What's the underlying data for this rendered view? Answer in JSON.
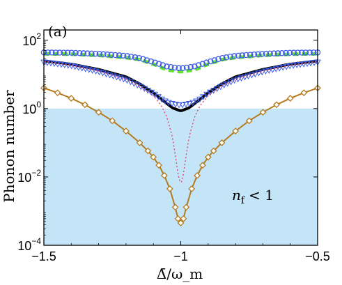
{
  "chart_data": {
    "type": "line",
    "panel_label": "(a)",
    "xlabel": "Δ̄/ω_m",
    "ylabel": "Phonon number",
    "x_scale": "linear",
    "y_scale": "log",
    "xlim": [
      -1.5,
      -0.5
    ],
    "ylim": [
      0.0001,
      200
    ],
    "x_ticks": [
      -1.5,
      -1,
      -0.5
    ],
    "x_tick_labels": [
      "−1.5",
      "−1",
      "−0.5"
    ],
    "y_ticks": [
      {
        "base": "10",
        "exp": "2",
        "value": 100
      },
      {
        "base": "10",
        "exp": "0",
        "value": 1
      },
      {
        "base": "10",
        "exp": "−2",
        "value": 0.01
      },
      {
        "base": "10",
        "exp": "−4",
        "value": 0.0001
      }
    ],
    "shaded_region": {
      "y_from": 0.0001,
      "y_to": 1,
      "color": "#c3e5f7"
    },
    "annotation": {
      "lhs": "n",
      "sub": "f",
      "rhs": "< 1"
    },
    "series": [
      {
        "marker": "dashed-line",
        "color": "#5ee22a",
        "x": [
          -1.5,
          -1.4,
          -1.3,
          -1.2,
          -1.15,
          -1.1,
          -1.05,
          -1.0,
          -0.95,
          -0.9,
          -0.85,
          -0.8,
          -0.7,
          -0.6,
          -0.5
        ],
        "y": [
          40,
          39,
          36,
          31,
          27,
          20,
          13.5,
          12,
          13.5,
          20,
          27,
          31,
          36,
          39,
          40
        ]
      },
      {
        "marker": "circle",
        "color": "#3d5ce6",
        "x": [
          -1.5,
          -1.4,
          -1.3,
          -1.2,
          -1.15,
          -1.1,
          -1.05,
          -1.0,
          -0.95,
          -0.9,
          -0.85,
          -0.8,
          -0.7,
          -0.6,
          -0.5
        ],
        "y": [
          44,
          43,
          40,
          35,
          30,
          23,
          17,
          15,
          17,
          23,
          30,
          35,
          40,
          43,
          44
        ]
      },
      {
        "marker": "solid-line",
        "color": "#000000",
        "x": [
          -1.5,
          -1.4,
          -1.3,
          -1.2,
          -1.15,
          -1.1,
          -1.06,
          -1.03,
          -1.0,
          -0.97,
          -0.94,
          -0.9,
          -0.85,
          -0.8,
          -0.7,
          -0.6,
          -0.5
        ],
        "y": [
          25,
          20,
          14,
          8.5,
          5.3,
          2.9,
          1.6,
          1.05,
          0.85,
          1.05,
          1.6,
          2.9,
          5.3,
          8.5,
          14,
          20,
          25
        ]
      },
      {
        "marker": "triangle",
        "color": "#3d5ce6",
        "x": [
          -1.5,
          -1.4,
          -1.3,
          -1.2,
          -1.15,
          -1.1,
          -1.07,
          -1.05,
          -1.03,
          -1.01,
          -1.0,
          -0.99,
          -0.97,
          -0.95,
          -0.93,
          -0.9,
          -0.85,
          -0.8,
          -0.7,
          -0.6,
          -0.5
        ],
        "y": [
          23,
          18,
          12,
          7.0,
          4.6,
          2.8,
          1.9,
          1.55,
          1.4,
          1.3,
          1.28,
          1.3,
          1.4,
          1.55,
          1.9,
          2.8,
          4.6,
          7.0,
          12,
          18,
          23
        ]
      },
      {
        "marker": "dotted-line",
        "color": "#d9456e",
        "x": [
          -1.5,
          -1.4,
          -1.3,
          -1.2,
          -1.15,
          -1.1,
          -1.07,
          -1.05,
          -1.03,
          -1.02,
          -1.01,
          -1.0,
          -0.99,
          -0.98,
          -0.97,
          -0.95,
          -0.93,
          -0.9,
          -0.85,
          -0.8,
          -0.7,
          -0.6,
          -0.5
        ],
        "y": [
          24,
          18.5,
          12.5,
          7.2,
          4.6,
          2.4,
          1.2,
          0.55,
          0.14,
          0.045,
          0.012,
          0.006,
          0.012,
          0.045,
          0.14,
          0.55,
          1.2,
          2.4,
          4.6,
          7.2,
          12.5,
          18.5,
          24
        ]
      },
      {
        "marker": "diamond",
        "color": "#b57a1e",
        "x": [
          -1.5,
          -1.45,
          -1.4,
          -1.35,
          -1.3,
          -1.25,
          -1.2,
          -1.15,
          -1.12,
          -1.1,
          -1.08,
          -1.06,
          -1.04,
          -1.02,
          -1.01,
          -1.0,
          -0.99,
          -0.98,
          -0.96,
          -0.94,
          -0.92,
          -0.9,
          -0.88,
          -0.85,
          -0.8,
          -0.75,
          -0.7,
          -0.65,
          -0.6,
          -0.55,
          -0.5
        ],
        "y": [
          4.0,
          2.9,
          2.0,
          1.3,
          0.78,
          0.44,
          0.22,
          0.1,
          0.058,
          0.038,
          0.022,
          0.011,
          0.0045,
          0.0013,
          0.0006,
          0.00045,
          0.0006,
          0.0013,
          0.0045,
          0.011,
          0.022,
          0.038,
          0.058,
          0.1,
          0.22,
          0.44,
          0.78,
          1.3,
          2.0,
          2.9,
          4.0
        ]
      }
    ]
  }
}
